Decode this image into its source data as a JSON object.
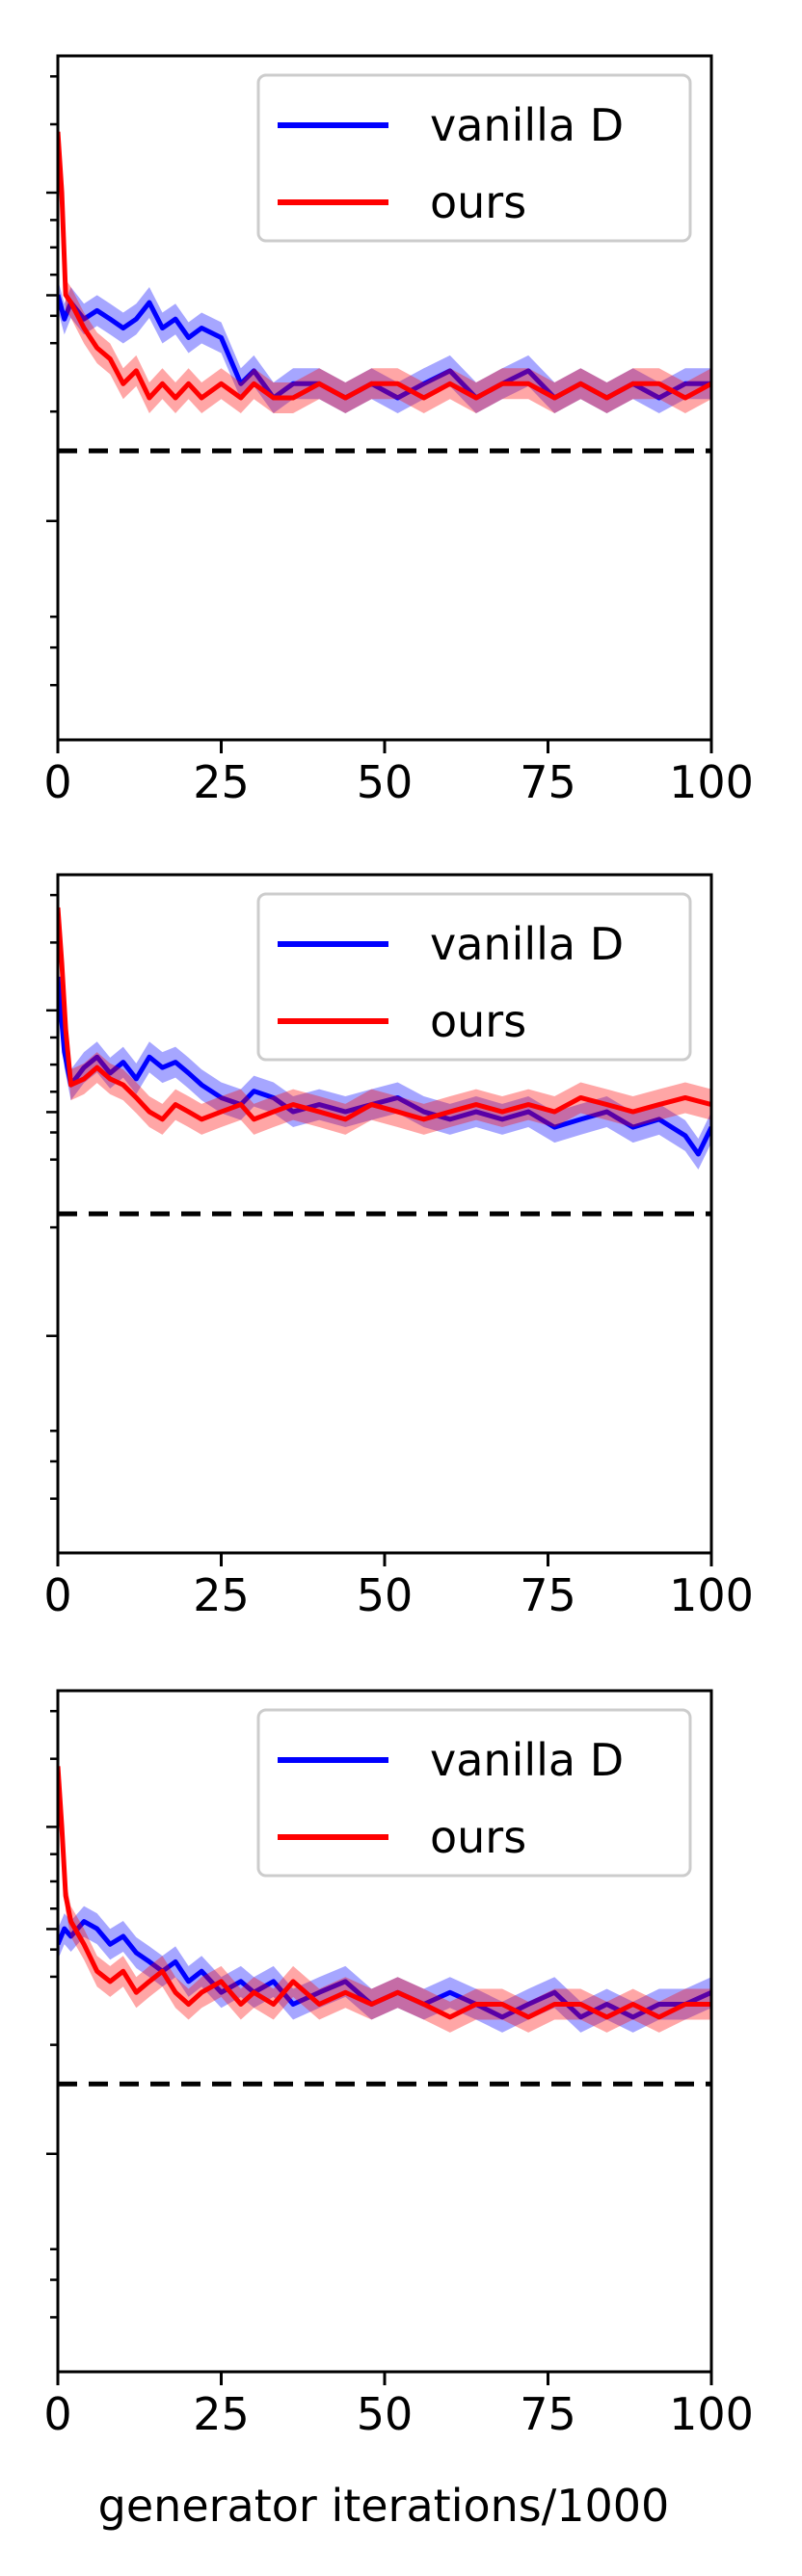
{
  "chart_data": [
    {
      "type": "line",
      "x_ticks": [
        "0",
        "25",
        "50",
        "75",
        "100"
      ],
      "xlim": [
        0,
        100
      ],
      "ylim": [
        0,
        100
      ],
      "y_log_scale": true,
      "xlabel": "",
      "legend": [
        "vanilla D",
        "ours"
      ],
      "legend_placement": "top-right",
      "reference_line": {
        "y": 7,
        "style": "dashed",
        "color": "#000000"
      },
      "series": [
        {
          "name": "vanilla D",
          "color": "#0000ff",
          "x": [
            0,
            1,
            2,
            4,
            6,
            8,
            10,
            12,
            14,
            16,
            18,
            20,
            22,
            25,
            28,
            30,
            33,
            36,
            40,
            44,
            48,
            52,
            56,
            60,
            64,
            68,
            72,
            76,
            80,
            84,
            88,
            92,
            96,
            100
          ],
          "y": [
            20,
            17,
            19,
            17,
            18,
            17,
            16,
            17,
            19,
            16,
            17,
            15,
            16,
            15,
            11,
            12,
            10,
            11,
            11,
            10,
            11,
            10,
            11,
            12,
            10,
            11,
            12,
            10,
            11,
            10,
            11,
            10,
            11,
            11
          ]
        },
        {
          "name": "ours",
          "color": "#ff0000",
          "x": [
            0,
            0.6,
            1.2,
            2,
            4,
            6,
            8,
            10,
            12,
            14,
            16,
            18,
            20,
            22,
            25,
            28,
            30,
            33,
            36,
            40,
            44,
            48,
            52,
            56,
            60,
            64,
            68,
            72,
            76,
            80,
            84,
            88,
            92,
            96,
            100
          ],
          "y": [
            60,
            40,
            20,
            19,
            16,
            14,
            13,
            11,
            12,
            10,
            11,
            10,
            11,
            10,
            11,
            10,
            11,
            10,
            10,
            11,
            10,
            11,
            11,
            10,
            11,
            10,
            11,
            11,
            10,
            11,
            10,
            11,
            11,
            10,
            11
          ]
        }
      ]
    },
    {
      "type": "line",
      "x_ticks": [
        "0",
        "25",
        "50",
        "75",
        "100"
      ],
      "xlim": [
        0,
        100
      ],
      "ylim": [
        0,
        100
      ],
      "y_log_scale": true,
      "xlabel": "",
      "legend": [
        "vanilla D",
        "ours"
      ],
      "legend_placement": "top-right",
      "reference_line": {
        "y": 10,
        "style": "dashed",
        "color": "#000000"
      },
      "series": [
        {
          "name": "vanilla D",
          "color": "#0000ff",
          "x": [
            0,
            1,
            2,
            4,
            6,
            8,
            10,
            12,
            14,
            16,
            18,
            20,
            22,
            25,
            28,
            30,
            33,
            36,
            40,
            44,
            48,
            52,
            56,
            60,
            64,
            68,
            72,
            76,
            80,
            84,
            88,
            92,
            96,
            98,
            100
          ],
          "y": [
            50,
            30,
            24,
            27,
            29,
            26,
            28,
            25,
            29,
            27,
            28,
            26,
            24,
            22,
            21,
            23,
            22,
            20,
            21,
            20,
            21,
            22,
            20,
            19,
            20,
            19,
            20,
            18,
            19,
            20,
            18,
            19,
            17,
            15,
            18
          ]
        },
        {
          "name": "ours",
          "color": "#ff0000",
          "x": [
            0,
            0.6,
            1.2,
            2,
            4,
            6,
            8,
            10,
            12,
            14,
            16,
            18,
            20,
            22,
            25,
            28,
            30,
            33,
            36,
            40,
            44,
            48,
            52,
            56,
            60,
            64,
            68,
            72,
            76,
            80,
            84,
            88,
            92,
            96,
            100
          ],
          "y": [
            80,
            55,
            35,
            24,
            25,
            27,
            25,
            24,
            22,
            20,
            19,
            21,
            20,
            19,
            20,
            21,
            19,
            20,
            21,
            20,
            19,
            21,
            20,
            19,
            20,
            21,
            20,
            21,
            20,
            22,
            21,
            20,
            21,
            22,
            21
          ]
        }
      ]
    },
    {
      "type": "line",
      "x_ticks": [
        "0",
        "25",
        "50",
        "75",
        "100"
      ],
      "xlim": [
        0,
        100
      ],
      "ylim": [
        0,
        100
      ],
      "y_log_scale": true,
      "xlabel": "generator iterations/1000",
      "legend": [
        "vanilla D",
        "ours"
      ],
      "legend_placement": "top-right",
      "reference_line": {
        "y": 7,
        "style": "dashed",
        "color": "#000000"
      },
      "series": [
        {
          "name": "vanilla D",
          "color": "#0000ff",
          "x": [
            0,
            1,
            2,
            4,
            6,
            8,
            10,
            12,
            14,
            16,
            18,
            20,
            22,
            25,
            28,
            30,
            33,
            36,
            40,
            44,
            48,
            52,
            56,
            60,
            64,
            68,
            72,
            76,
            80,
            84,
            88,
            92,
            96,
            100
          ],
          "y": [
            18,
            20,
            19,
            21,
            20,
            18,
            19,
            17,
            16,
            15,
            16,
            14,
            15,
            13,
            14,
            13,
            14,
            12,
            13,
            14,
            12,
            13,
            12,
            13,
            12,
            11,
            12,
            13,
            11,
            12,
            11,
            12,
            12,
            13
          ]
        },
        {
          "name": "ours",
          "color": "#ff0000",
          "x": [
            0,
            0.6,
            1.2,
            2,
            4,
            6,
            8,
            10,
            12,
            14,
            16,
            18,
            20,
            22,
            25,
            28,
            30,
            33,
            36,
            40,
            44,
            48,
            52,
            56,
            60,
            64,
            68,
            72,
            76,
            80,
            84,
            88,
            92,
            96,
            100
          ],
          "y": [
            60,
            40,
            25,
            21,
            18,
            15,
            14,
            15,
            13,
            14,
            15,
            13,
            12,
            13,
            14,
            12,
            13,
            12,
            14,
            12,
            13,
            12,
            13,
            12,
            11,
            12,
            12,
            11,
            12,
            12,
            11,
            12,
            11,
            12,
            12
          ]
        }
      ]
    }
  ]
}
